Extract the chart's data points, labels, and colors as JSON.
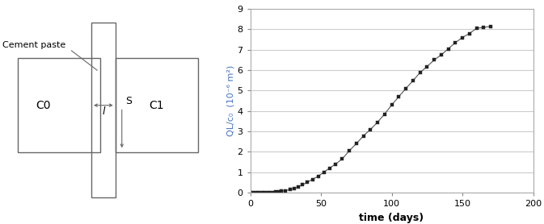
{
  "xlabel": "time (days)",
  "ylabel": "QL/c₀  (10⁻⁶ m²)",
  "xlim": [
    0,
    200
  ],
  "ylim": [
    0,
    9
  ],
  "xticks": [
    0,
    50,
    100,
    150,
    200
  ],
  "yticks": [
    0,
    1,
    2,
    3,
    4,
    5,
    6,
    7,
    8,
    9
  ],
  "line_color": "#555555",
  "marker_color": "#222222",
  "grid_color": "#cccccc",
  "bg_color": "#ffffff",
  "time_data": [
    0,
    2,
    4,
    6,
    8,
    10,
    12,
    14,
    16,
    18,
    20,
    22,
    25,
    28,
    31,
    34,
    37,
    40,
    44,
    48,
    52,
    56,
    60,
    65,
    70,
    75,
    80,
    85,
    90,
    95,
    100,
    105,
    110,
    115,
    120,
    125,
    130,
    135,
    140,
    145,
    150,
    155,
    160,
    165,
    170
  ],
  "ql_data": [
    0.0,
    0.0,
    0.0,
    0.0,
    0.0,
    0.0,
    0.0,
    0.0,
    0.02,
    0.03,
    0.05,
    0.07,
    0.1,
    0.15,
    0.2,
    0.28,
    0.38,
    0.5,
    0.65,
    0.8,
    1.0,
    1.2,
    1.38,
    1.65,
    2.05,
    2.4,
    2.78,
    3.1,
    3.45,
    3.85,
    4.3,
    4.7,
    5.1,
    5.48,
    5.88,
    6.18,
    6.5,
    6.75,
    7.05,
    7.35,
    7.6,
    7.8,
    8.05,
    8.1,
    8.15
  ]
}
